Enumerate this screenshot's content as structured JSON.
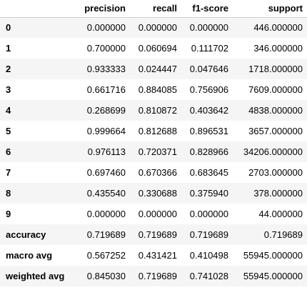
{
  "table": {
    "columns": [
      "",
      "precision",
      "recall",
      "f1-score",
      "support"
    ],
    "rows": [
      {
        "label": "0",
        "precision": "0.000000",
        "recall": "0.000000",
        "f1": "0.000000",
        "support": "446.000000"
      },
      {
        "label": "1",
        "precision": "0.700000",
        "recall": "0.060694",
        "f1": "0.111702",
        "support": "346.000000"
      },
      {
        "label": "2",
        "precision": "0.933333",
        "recall": "0.024447",
        "f1": "0.047646",
        "support": "1718.000000"
      },
      {
        "label": "3",
        "precision": "0.661716",
        "recall": "0.884085",
        "f1": "0.756906",
        "support": "7609.000000"
      },
      {
        "label": "4",
        "precision": "0.268699",
        "recall": "0.810872",
        "f1": "0.403642",
        "support": "4838.000000"
      },
      {
        "label": "5",
        "precision": "0.999664",
        "recall": "0.812688",
        "f1": "0.896531",
        "support": "3657.000000"
      },
      {
        "label": "6",
        "precision": "0.976113",
        "recall": "0.720371",
        "f1": "0.828966",
        "support": "34206.000000"
      },
      {
        "label": "7",
        "precision": "0.697460",
        "recall": "0.670366",
        "f1": "0.683645",
        "support": "2703.000000"
      },
      {
        "label": "8",
        "precision": "0.435540",
        "recall": "0.330688",
        "f1": "0.375940",
        "support": "378.000000"
      },
      {
        "label": "9",
        "precision": "0.000000",
        "recall": "0.000000",
        "f1": "0.000000",
        "support": "44.000000"
      },
      {
        "label": "accuracy",
        "precision": "0.719689",
        "recall": "0.719689",
        "f1": "0.719689",
        "support": "0.719689"
      },
      {
        "label": "macro avg",
        "precision": "0.567252",
        "recall": "0.431421",
        "f1": "0.410498",
        "support": "55945.000000"
      },
      {
        "label": "weighted avg",
        "precision": "0.845030",
        "recall": "0.719689",
        "f1": "0.741028",
        "support": "55945.000000"
      }
    ]
  }
}
